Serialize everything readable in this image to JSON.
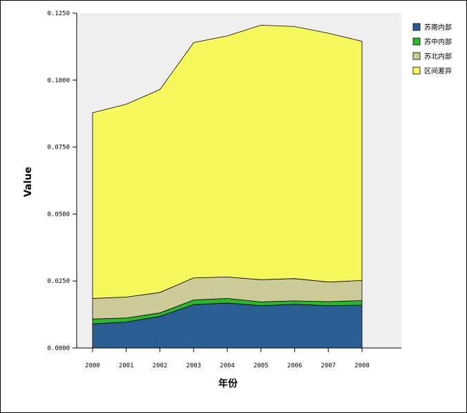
{
  "chart_data": {
    "type": "area",
    "stacked": true,
    "x": [
      2000,
      2001,
      2002,
      2003,
      2004,
      2005,
      2006,
      2007,
      2008
    ],
    "series": [
      {
        "name": "苏南内部",
        "color": "#2b5c92",
        "values": [
          0.009,
          0.0097,
          0.0118,
          0.0162,
          0.0168,
          0.0158,
          0.0163,
          0.0158,
          0.016
        ]
      },
      {
        "name": "苏中内部",
        "color": "#2cb82c",
        "values": [
          0.0018,
          0.0015,
          0.0013,
          0.0017,
          0.0017,
          0.0014,
          0.0013,
          0.0015,
          0.0017
        ]
      },
      {
        "name": "苏北内部",
        "color": "#cdcb99",
        "values": [
          0.0077,
          0.0078,
          0.0076,
          0.0083,
          0.008,
          0.0083,
          0.0083,
          0.0073,
          0.0075
        ]
      },
      {
        "name": "区间差异",
        "color": "#f7f75e",
        "values": [
          0.0693,
          0.072,
          0.0758,
          0.0878,
          0.09,
          0.095,
          0.0941,
          0.0929,
          0.0893
        ]
      }
    ],
    "xlabel": "年份",
    "ylabel": "Value",
    "ylim": [
      0,
      0.125
    ],
    "yticks": [
      0.0,
      0.025,
      0.05,
      0.075,
      0.1,
      0.125
    ],
    "ytick_labels": [
      "0.0000",
      "0.0250",
      "0.0500",
      "0.0750",
      "0.1000",
      "0.1250"
    ],
    "xtick_labels": [
      "2000",
      "2001",
      "2002",
      "2003",
      "2004",
      "2005",
      "2006",
      "2007",
      "2008"
    ],
    "legend_position": "top-right",
    "plot_background": "#efefef",
    "grid": false
  }
}
